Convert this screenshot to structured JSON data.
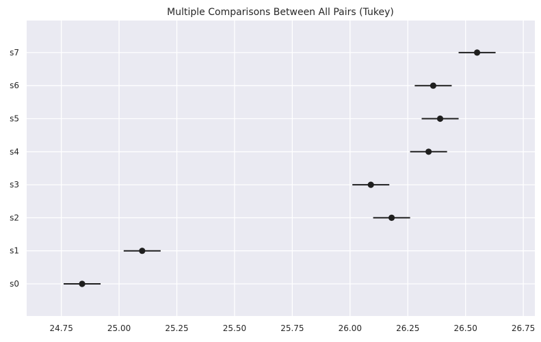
{
  "chart_data": {
    "type": "scatter",
    "title": "Multiple Comparisons Between All Pairs (Tukey)",
    "xlabel": "",
    "ylabel": "",
    "xlim": [
      24.6,
      26.8
    ],
    "xticks": [
      "24.75",
      "25.00",
      "25.25",
      "25.50",
      "25.75",
      "26.00",
      "26.25",
      "26.50",
      "26.75"
    ],
    "groups": [
      "s0",
      "s1",
      "s2",
      "s3",
      "s4",
      "s5",
      "s6",
      "s7"
    ],
    "means": [
      24.84,
      25.1,
      26.18,
      26.09,
      26.34,
      26.39,
      26.36,
      26.55
    ],
    "lower": [
      24.76,
      25.02,
      26.1,
      26.01,
      26.26,
      26.31,
      26.28,
      26.47
    ],
    "upper": [
      24.92,
      25.18,
      26.26,
      26.17,
      26.42,
      26.47,
      26.44,
      26.63
    ],
    "grid": true,
    "colors": {
      "background": "#EAEAF2",
      "grid": "#FFFFFF",
      "marker": "#1F1F1F",
      "text": "#262626"
    }
  }
}
